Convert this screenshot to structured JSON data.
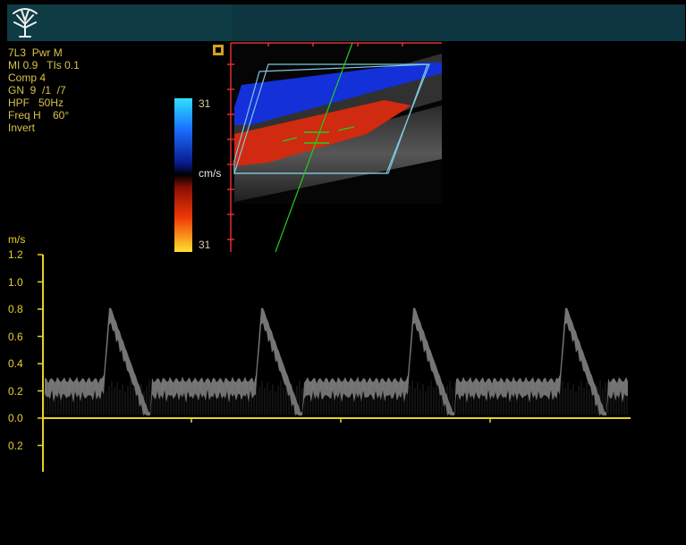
{
  "header": {
    "logo_icon": "tree-logo-icon"
  },
  "parameters": [
    "7L3  Pwr M",
    "MI 0.9   TIs 0.1",
    "Comp 4",
    "GN  9  /1  /7",
    "HPF   50Hz",
    "Freq H    60°",
    "Invert"
  ],
  "color_scale": {
    "max_label": "31",
    "unit": "cm/s",
    "min_label": "31"
  },
  "spectral": {
    "unit": "m/s",
    "ticks_above": [
      "1.2",
      "1.0",
      "0.8",
      "0.6",
      "0.4",
      "0.2",
      "0.0"
    ],
    "ticks_below": [
      "0.2"
    ],
    "cycles": 4
  },
  "colors": {
    "title_bar": "#0f3b45",
    "annotation": "#e8d22a",
    "doppler_cursor": "#22cc22",
    "flow_toward": "#d02a10",
    "flow_away": "#1430d8"
  }
}
